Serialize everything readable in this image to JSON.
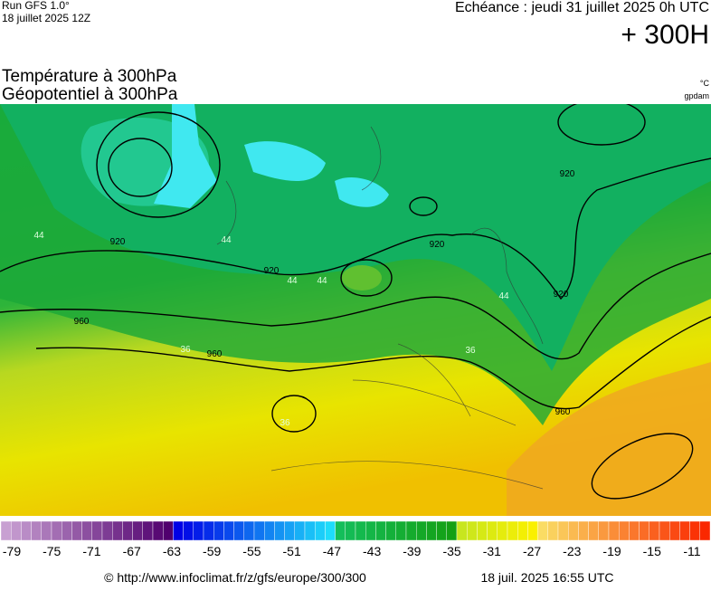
{
  "header": {
    "run": "Run GFS 1.0°",
    "run_date": "18 juillet 2025 12Z",
    "valid": "Echéance : jeudi 31 juillet 2025 0h UTC",
    "lead": "+ 300H"
  },
  "titles": {
    "line1": "Température à 300hPa",
    "line2": "Géopotentiel à 300hPa",
    "unit1": "°C",
    "unit2": "gpdam"
  },
  "map": {
    "contour_labels": [
      "920",
      "920",
      "920",
      "920",
      "920",
      "960",
      "960",
      "960",
      "44",
      "44",
      "44",
      "44",
      "44",
      "36",
      "36",
      "36"
    ]
  },
  "colorbar": {
    "labels": [
      -79,
      -75,
      -71,
      -67,
      -63,
      -59,
      -55,
      -51,
      -47,
      -43,
      -39,
      -35,
      -31,
      -27,
      -23,
      -19,
      -15,
      -11
    ]
  },
  "footer": {
    "url": "© http://www.infoclimat.fr/z/gfs/europe/300/300",
    "generated": "18 juil. 2025 16:55 UTC"
  }
}
